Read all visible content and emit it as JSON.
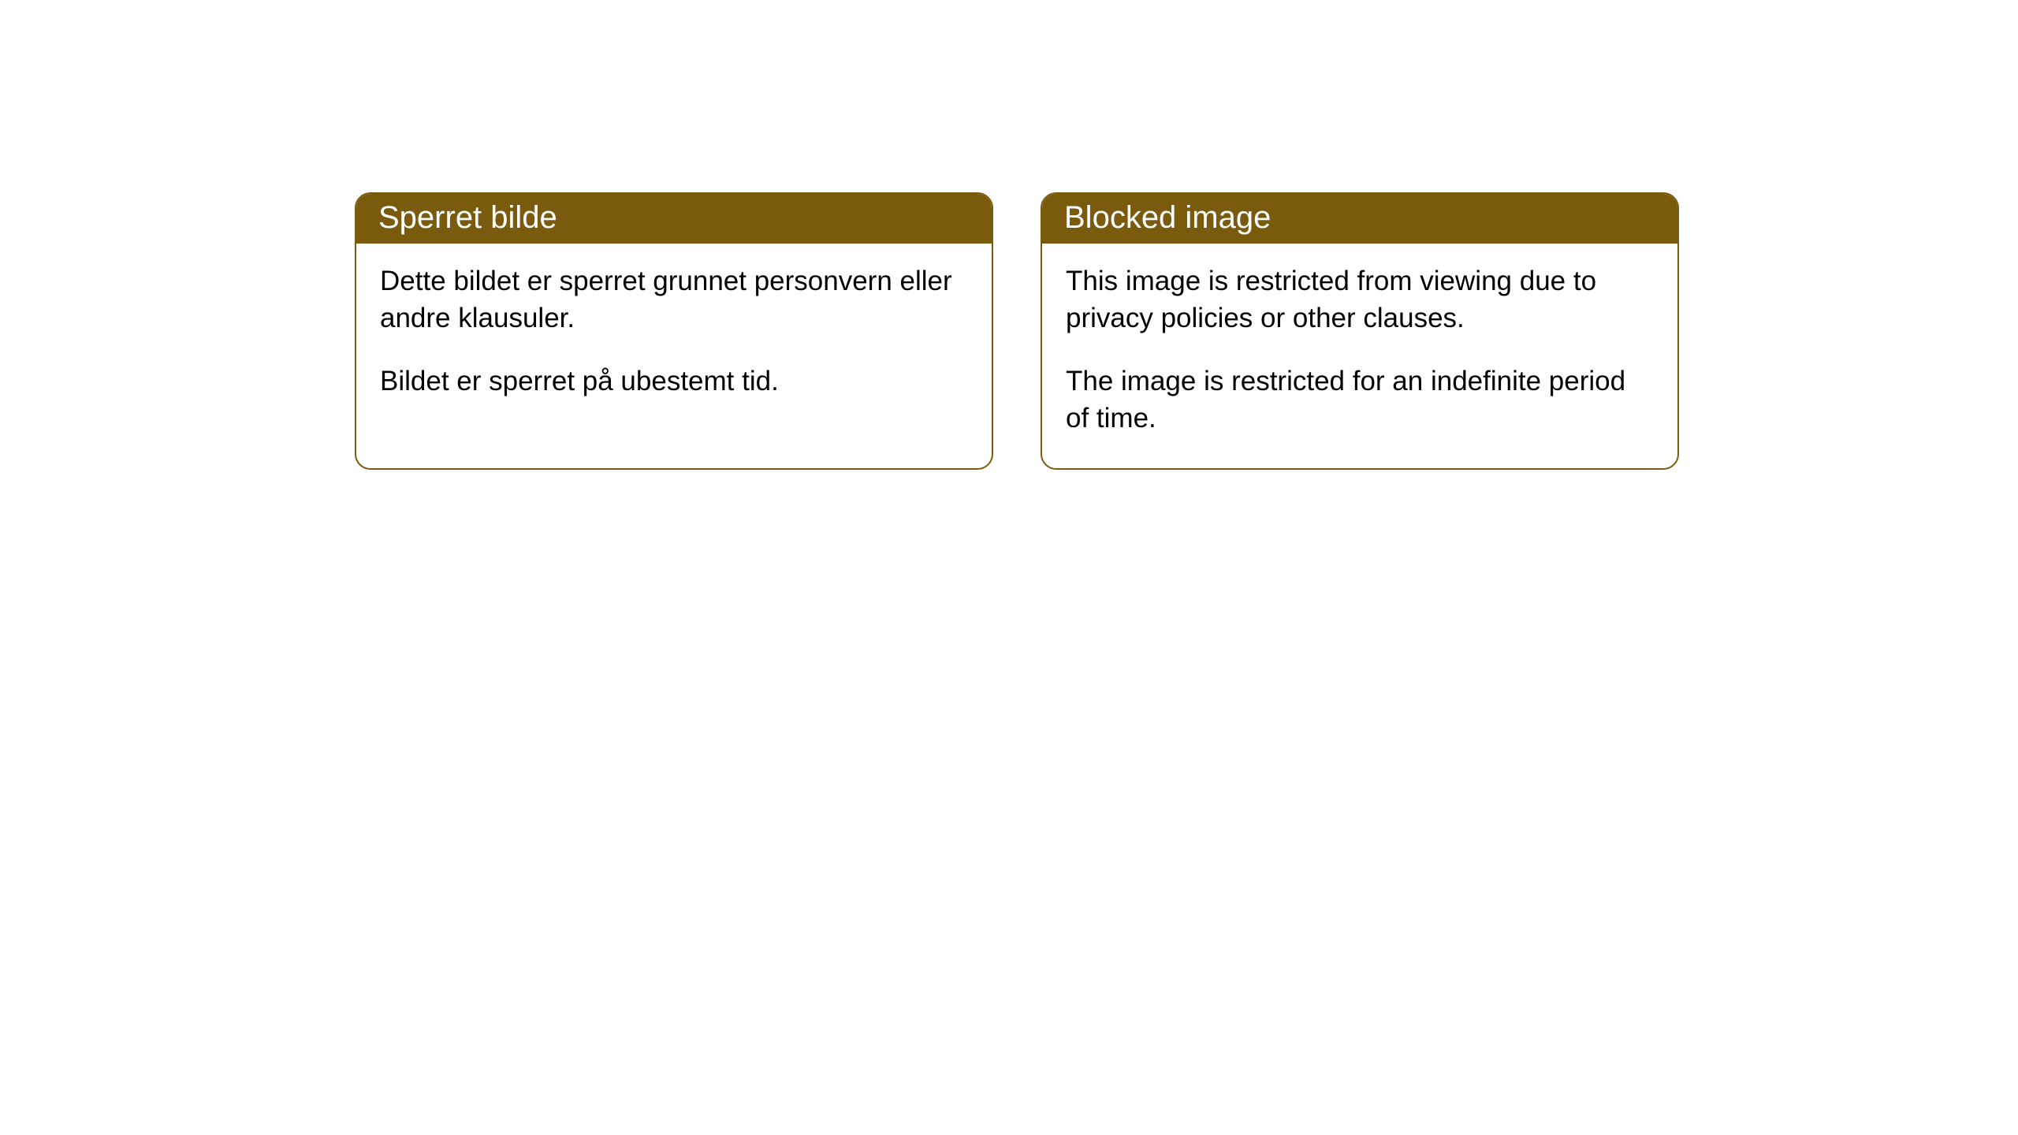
{
  "cards": [
    {
      "title": "Sperret bilde",
      "paragraph1": "Dette bildet er sperret grunnet personvern eller andre klausuler.",
      "paragraph2": "Bildet er sperret på ubestemt tid."
    },
    {
      "title": "Blocked image",
      "paragraph1": "This image is restricted from viewing due to privacy policies or other clauses.",
      "paragraph2": "The image is restricted for an indefinite period of time."
    }
  ],
  "styling": {
    "header_bg_color": "#7a5a0c",
    "header_text_color": "#ffffff",
    "border_color": "#7a5a0c",
    "body_bg_color": "#ffffff",
    "body_text_color": "#000000",
    "border_radius": 20,
    "header_fontsize": 40,
    "body_fontsize": 35
  }
}
